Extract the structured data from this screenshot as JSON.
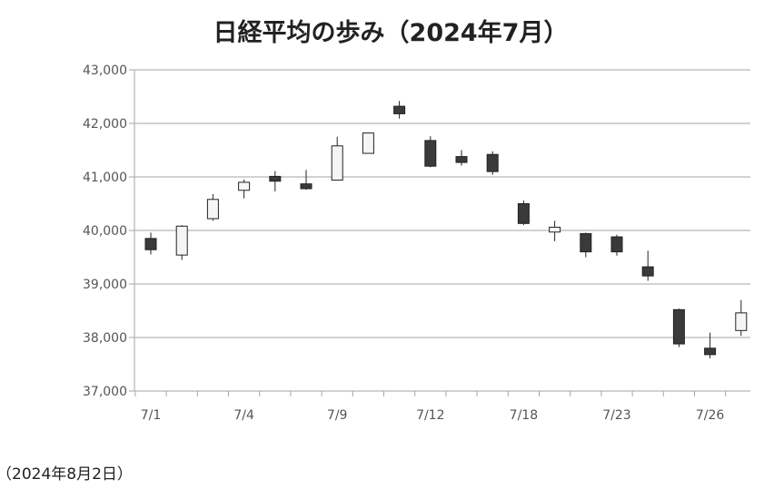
{
  "chart_data": {
    "type": "candlestick",
    "title": "日経平均の歩み（2024年7月）",
    "ylim": [
      37000,
      43000
    ],
    "yticks": [
      43000,
      42000,
      41000,
      40000,
      39000,
      38000,
      37000
    ],
    "ytick_labels": [
      "43,000",
      "42,000",
      "41,000",
      "40,000",
      "39,000",
      "38,000",
      "37,000"
    ],
    "x_tick_labels": [
      {
        "index": 0,
        "label": "7/1"
      },
      {
        "index": 3,
        "label": "7/4"
      },
      {
        "index": 6,
        "label": "7/9"
      },
      {
        "index": 9,
        "label": "7/12"
      },
      {
        "index": 12,
        "label": "7/18"
      },
      {
        "index": 15,
        "label": "7/23"
      },
      {
        "index": 18,
        "label": "7/26"
      }
    ],
    "grid": true,
    "colors": {
      "up_fill": "#f5f5f5",
      "down_fill": "#3a3a3a",
      "stroke": "#222222",
      "grid": "#a6a6a6"
    },
    "candles": [
      {
        "date": "7/1",
        "open": 39850,
        "high": 39960,
        "low": 39550,
        "close": 39640
      },
      {
        "date": "7/2",
        "open": 39540,
        "high": 40100,
        "low": 39450,
        "close": 40080
      },
      {
        "date": "7/3",
        "open": 40220,
        "high": 40680,
        "low": 40180,
        "close": 40580
      },
      {
        "date": "7/4",
        "open": 40750,
        "high": 40950,
        "low": 40600,
        "close": 40900
      },
      {
        "date": "7/5",
        "open": 41010,
        "high": 41110,
        "low": 40730,
        "close": 40920
      },
      {
        "date": "7/8",
        "open": 40870,
        "high": 41130,
        "low": 40760,
        "close": 40780
      },
      {
        "date": "7/9",
        "open": 40940,
        "high": 41750,
        "low": 40940,
        "close": 41580
      },
      {
        "date": "7/10",
        "open": 41440,
        "high": 41830,
        "low": 41440,
        "close": 41820
      },
      {
        "date": "7/11",
        "open": 42320,
        "high": 42420,
        "low": 42090,
        "close": 42180
      },
      {
        "date": "7/12",
        "open": 41680,
        "high": 41760,
        "low": 41180,
        "close": 41200
      },
      {
        "date": "7/16",
        "open": 41380,
        "high": 41500,
        "low": 41210,
        "close": 41270
      },
      {
        "date": "7/17",
        "open": 41420,
        "high": 41480,
        "low": 41040,
        "close": 41100
      },
      {
        "date": "7/18",
        "open": 40500,
        "high": 40560,
        "low": 40100,
        "close": 40130
      },
      {
        "date": "7/19",
        "open": 39970,
        "high": 40180,
        "low": 39800,
        "close": 40060
      },
      {
        "date": "7/22",
        "open": 39940,
        "high": 39960,
        "low": 39500,
        "close": 39600
      },
      {
        "date": "7/23",
        "open": 39880,
        "high": 39920,
        "low": 39530,
        "close": 39600
      },
      {
        "date": "7/24",
        "open": 39320,
        "high": 39620,
        "low": 39060,
        "close": 39150
      },
      {
        "date": "7/25",
        "open": 38520,
        "high": 38540,
        "low": 37820,
        "close": 37880
      },
      {
        "date": "7/26",
        "open": 37800,
        "high": 38090,
        "low": 37610,
        "close": 37680
      },
      {
        "date": "7/29",
        "open": 38130,
        "high": 38700,
        "low": 38030,
        "close": 38460
      }
    ]
  },
  "footnote": "（2024年8月2日）"
}
